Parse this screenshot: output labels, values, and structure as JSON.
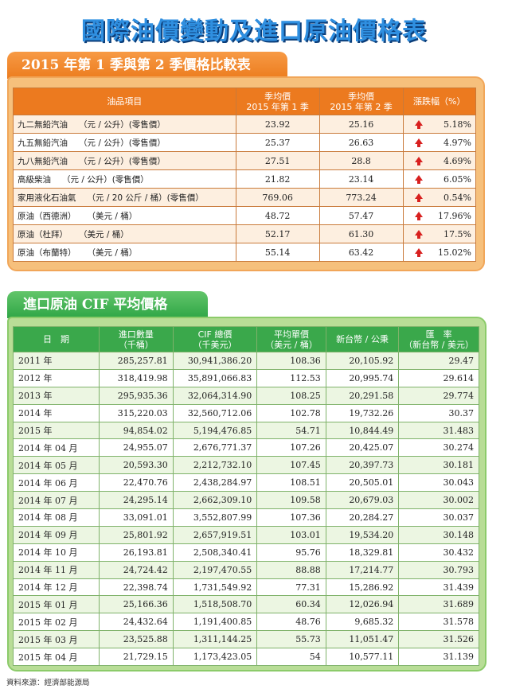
{
  "title": "國際油價變動及進口原油價格表",
  "section1": {
    "tab_label": "2015 年第 1 季與第 2 季價格比較表",
    "headers": {
      "item": "油品項目",
      "q1": [
        "季均價",
        "2015 年第 1 季"
      ],
      "q2": [
        "季均價",
        "2015 年第 2 季"
      ],
      "change": "漲跌幅（%）"
    },
    "rows": [
      {
        "name": "九二無鉛汽油",
        "unit": "（元 / 公升）(零售價）",
        "q1": "23.92",
        "q2": "25.16",
        "direction": "up",
        "pct": "5.18%"
      },
      {
        "name": "九五無鉛汽油",
        "unit": "（元 / 公升）(零售價）",
        "q1": "25.37",
        "q2": "26.63",
        "direction": "up",
        "pct": "4.97%"
      },
      {
        "name": "九八無鉛汽油",
        "unit": "（元 / 公升）(零售價）",
        "q1": "27.51",
        "q2": "28.8",
        "direction": "up",
        "pct": "4.69%"
      },
      {
        "name": "高級柴油",
        "unit": "（元 / 公升）(零售價）",
        "q1": "21.82",
        "q2": "23.14",
        "direction": "up",
        "pct": "6.05%"
      },
      {
        "name": "家用液化石油氣",
        "unit": "（元 / 20 公斤 / 桶）(零售價）",
        "q1": "769.06",
        "q2": "773.24",
        "direction": "up",
        "pct": "0.54%"
      },
      {
        "name": "原油（西德洲）",
        "unit": "（美元 / 桶）",
        "q1": "48.72",
        "q2": "57.47",
        "direction": "up",
        "pct": "17.96%"
      },
      {
        "name": "原油（杜拜）",
        "unit": "（美元 / 桶）",
        "q1": "52.17",
        "q2": "61.30",
        "direction": "up",
        "pct": "17.5%"
      },
      {
        "name": "原油（布蘭特）",
        "unit": "（美元 / 桶）",
        "q1": "55.14",
        "q2": "63.42",
        "direction": "up",
        "pct": "15.02%"
      }
    ]
  },
  "section2": {
    "tab_label": "進口原油 CIF 平均價格",
    "headers": {
      "date": "日　期",
      "qty": [
        "進口數量",
        "（千桶）"
      ],
      "cif": [
        "CIF 總價",
        "（千美元）"
      ],
      "avg": [
        "平均單價",
        "（美元 / 桶）"
      ],
      "twd": "新台幣 / 公秉",
      "rate": [
        "匯　率",
        "（新台幣 / 美元）"
      ]
    },
    "rows": [
      {
        "date": "2011 年",
        "qty": "285,257.81",
        "cif": "30,941,386.20",
        "avg": "108.36",
        "twd": "20,105.92",
        "rate": "29.47"
      },
      {
        "date": "2012 年",
        "qty": "318,419.98",
        "cif": "35,891,066.83",
        "avg": "112.53",
        "twd": "20,995.74",
        "rate": "29.614"
      },
      {
        "date": "2013 年",
        "qty": "295,935.36",
        "cif": "32,064,314.90",
        "avg": "108.25",
        "twd": "20,291.58",
        "rate": "29.774"
      },
      {
        "date": "2014 年",
        "qty": "315,220.03",
        "cif": "32,560,712.06",
        "avg": "102.78",
        "twd": "19,732.26",
        "rate": "30.37"
      },
      {
        "date": "2015 年",
        "qty": "94,854.02",
        "cif": "5,194,476.85",
        "avg": "54.71",
        "twd": "10,844.49",
        "rate": "31.483"
      },
      {
        "date": "2014 年 04 月",
        "qty": "24,955.07",
        "cif": "2,676,771.37",
        "avg": "107.26",
        "twd": "20,425.07",
        "rate": "30.274"
      },
      {
        "date": "2014 年 05 月",
        "qty": "20,593.30",
        "cif": "2,212,732.10",
        "avg": "107.45",
        "twd": "20,397.73",
        "rate": "30.181"
      },
      {
        "date": "2014 年 06 月",
        "qty": "22,470.76",
        "cif": "2,438,284.97",
        "avg": "108.51",
        "twd": "20,505.01",
        "rate": "30.043"
      },
      {
        "date": "2014 年 07 月",
        "qty": "24,295.14",
        "cif": "2,662,309.10",
        "avg": "109.58",
        "twd": "20,679.03",
        "rate": "30.002"
      },
      {
        "date": "2014 年 08 月",
        "qty": "33,091.01",
        "cif": "3,552,807.99",
        "avg": "107.36",
        "twd": "20,284.27",
        "rate": "30.037"
      },
      {
        "date": "2014 年 09 月",
        "qty": "25,801.92",
        "cif": "2,657,919.51",
        "avg": "103.01",
        "twd": "19,534.20",
        "rate": "30.148"
      },
      {
        "date": "2014 年 10 月",
        "qty": "26,193.81",
        "cif": "2,508,340.41",
        "avg": "95.76",
        "twd": "18,329.81",
        "rate": "30.432"
      },
      {
        "date": "2014 年 11 月",
        "qty": "24,724.42",
        "cif": "2,197,470.55",
        "avg": "88.88",
        "twd": "17,214.77",
        "rate": "30.793"
      },
      {
        "date": "2014 年 12 月",
        "qty": "22,398.74",
        "cif": "1,731,549.92",
        "avg": "77.31",
        "twd": "15,286.92",
        "rate": "31.439"
      },
      {
        "date": "2015 年 01 月",
        "qty": "25,166.36",
        "cif": "1,518,508.70",
        "avg": "60.34",
        "twd": "12,026.94",
        "rate": "31.689"
      },
      {
        "date": "2015 年 02 月",
        "qty": "24,432.64",
        "cif": "1,191,400.85",
        "avg": "48.76",
        "twd": "9,685.32",
        "rate": "31.578"
      },
      {
        "date": "2015 年 03 月",
        "qty": "23,525.88",
        "cif": "1,311,144.25",
        "avg": "55.73",
        "twd": "11,051.47",
        "rate": "31.526"
      },
      {
        "date": "2015 年 04 月",
        "qty": "21,729.15",
        "cif": "1,173,423.05",
        "avg": "54",
        "twd": "10,577.11",
        "rate": "31.139"
      }
    ]
  },
  "source": "資料來源：經濟部能源局",
  "colors": {
    "title": "#2f8fe0",
    "orange": "#ec7a1f",
    "green": "#3aa84b",
    "arrow": "#d8201f"
  }
}
